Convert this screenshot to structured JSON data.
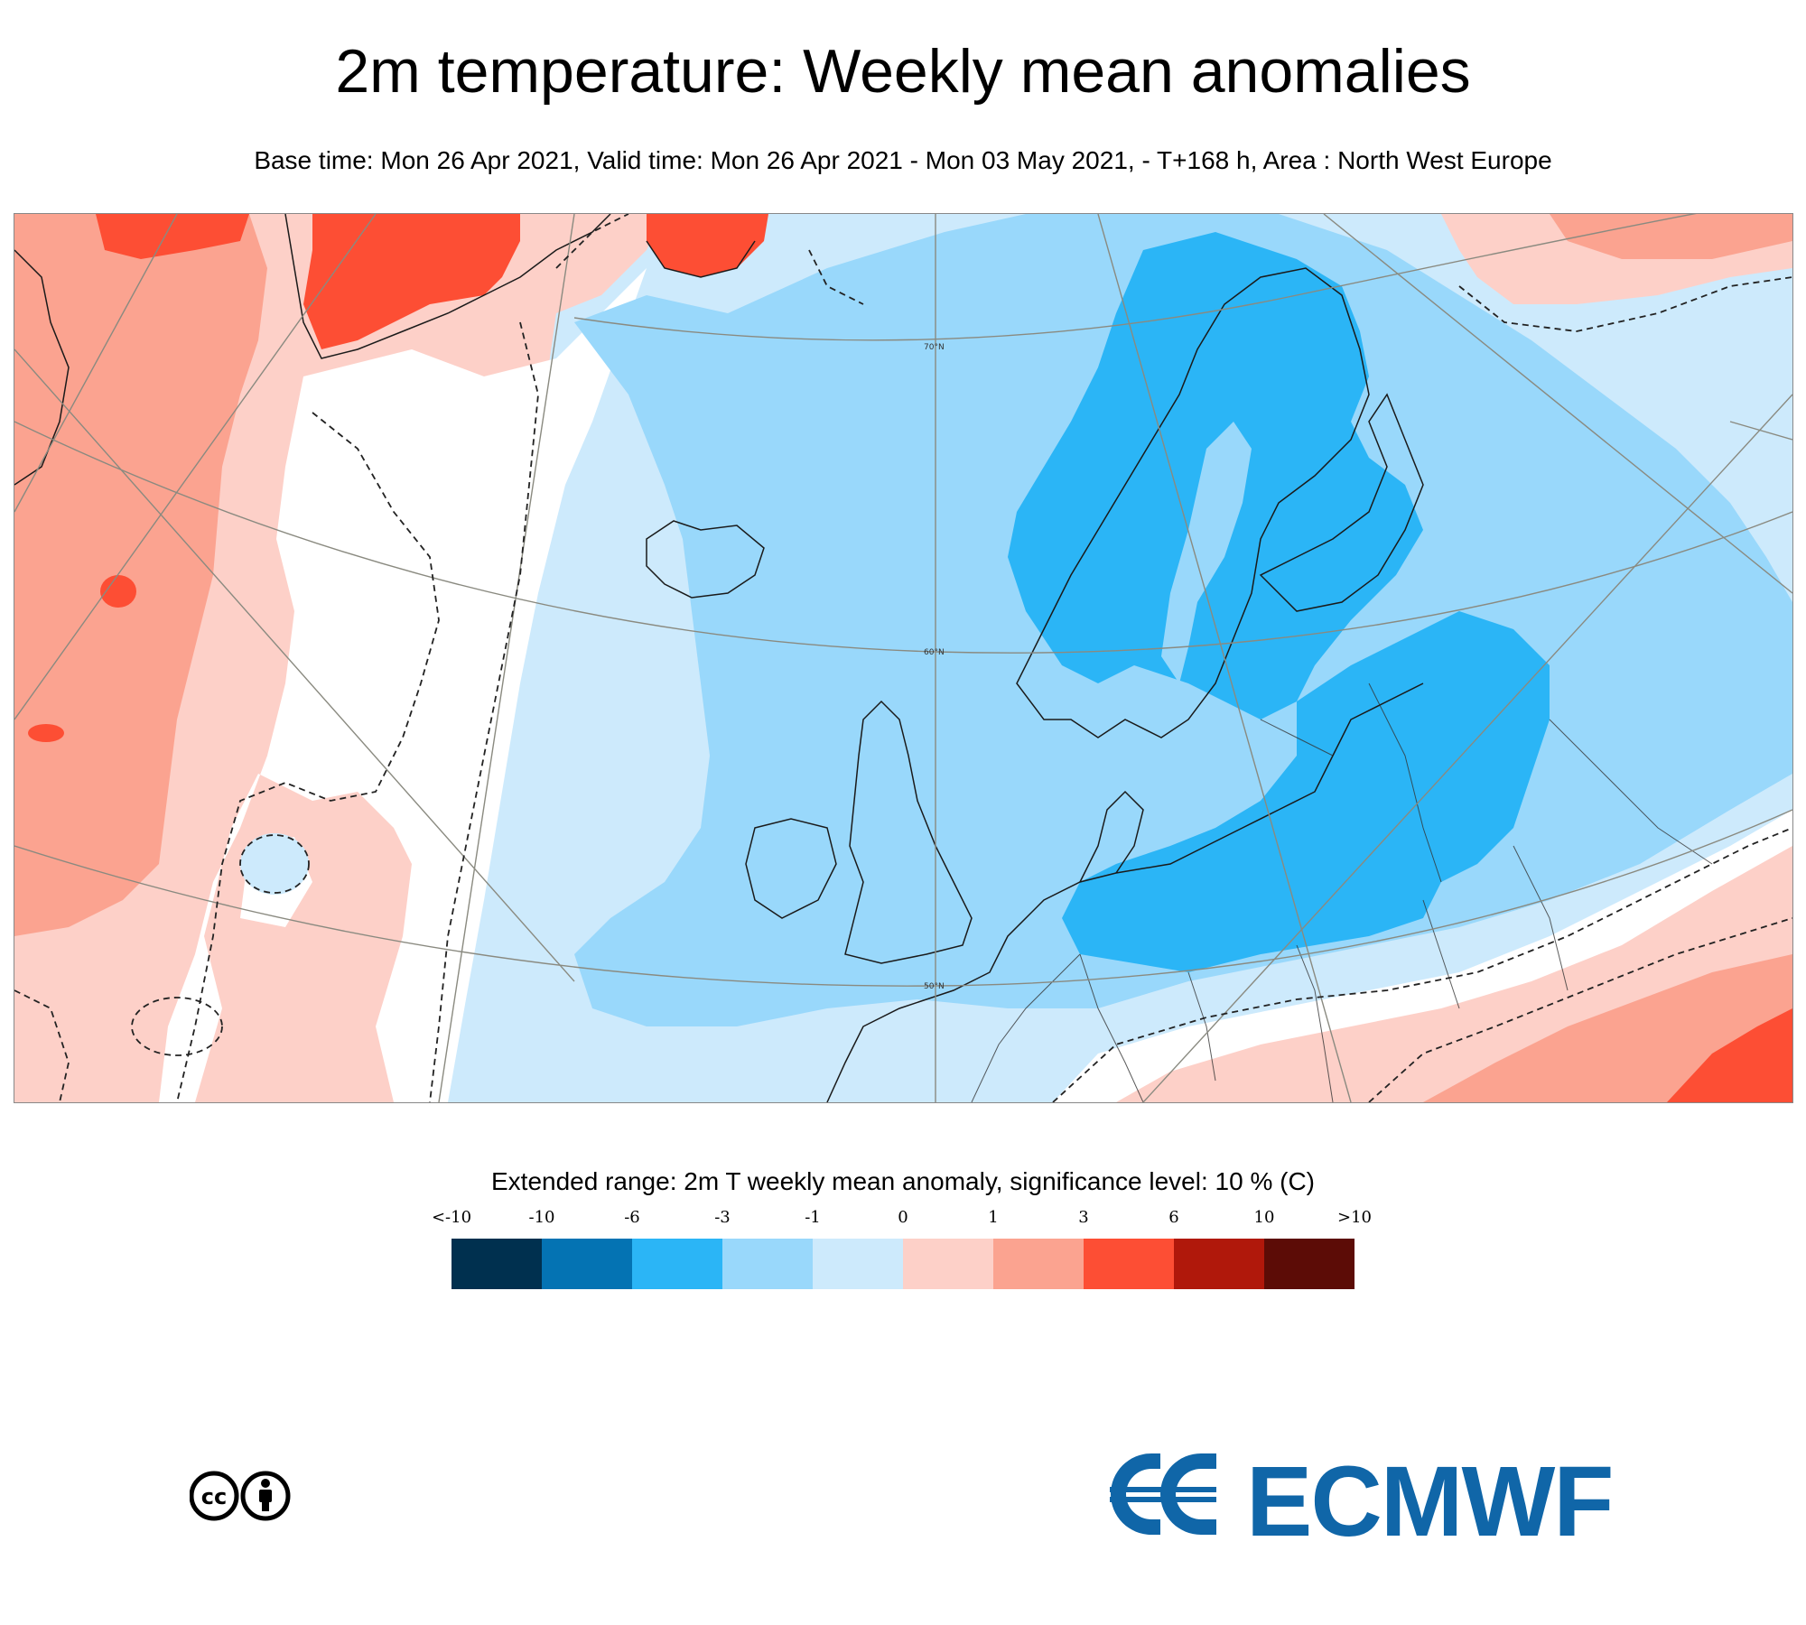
{
  "title": "2m temperature: Weekly mean anomalies",
  "subtitle": "Base time: Mon 26 Apr 2021, Valid time: Mon 26 Apr 2021 - Mon 03 May 2021, - T+168 h, Area : North West Europe",
  "map": {
    "latitude_labels": [
      "70°N",
      "60°N",
      "50°N"
    ],
    "colors": {
      "land_border": "#1a1a1a",
      "graticule": "#8a8a80",
      "contour_dashed": "#222222"
    }
  },
  "legend": {
    "title": "Extended range: 2m T weekly mean anomaly, significance level: 10 % (C)",
    "ticks": [
      "<-10",
      "-10",
      "-6",
      "-3",
      "-1",
      "0",
      "1",
      "3",
      "6",
      "10",
      ">10"
    ],
    "colors": [
      "#00304f",
      "#0473b3",
      "#2bb5f6",
      "#99d8fb",
      "#cdeafc",
      "#fdd0c8",
      "#fba390",
      "#fd4e34",
      "#b0180b",
      "#5c0c06"
    ]
  },
  "footer": {
    "license_icon": "cc-by-icon",
    "logo_text": "ECMWF",
    "logo_icon": "ecmwf-logo-icon",
    "brand_color": "#1066a8"
  }
}
